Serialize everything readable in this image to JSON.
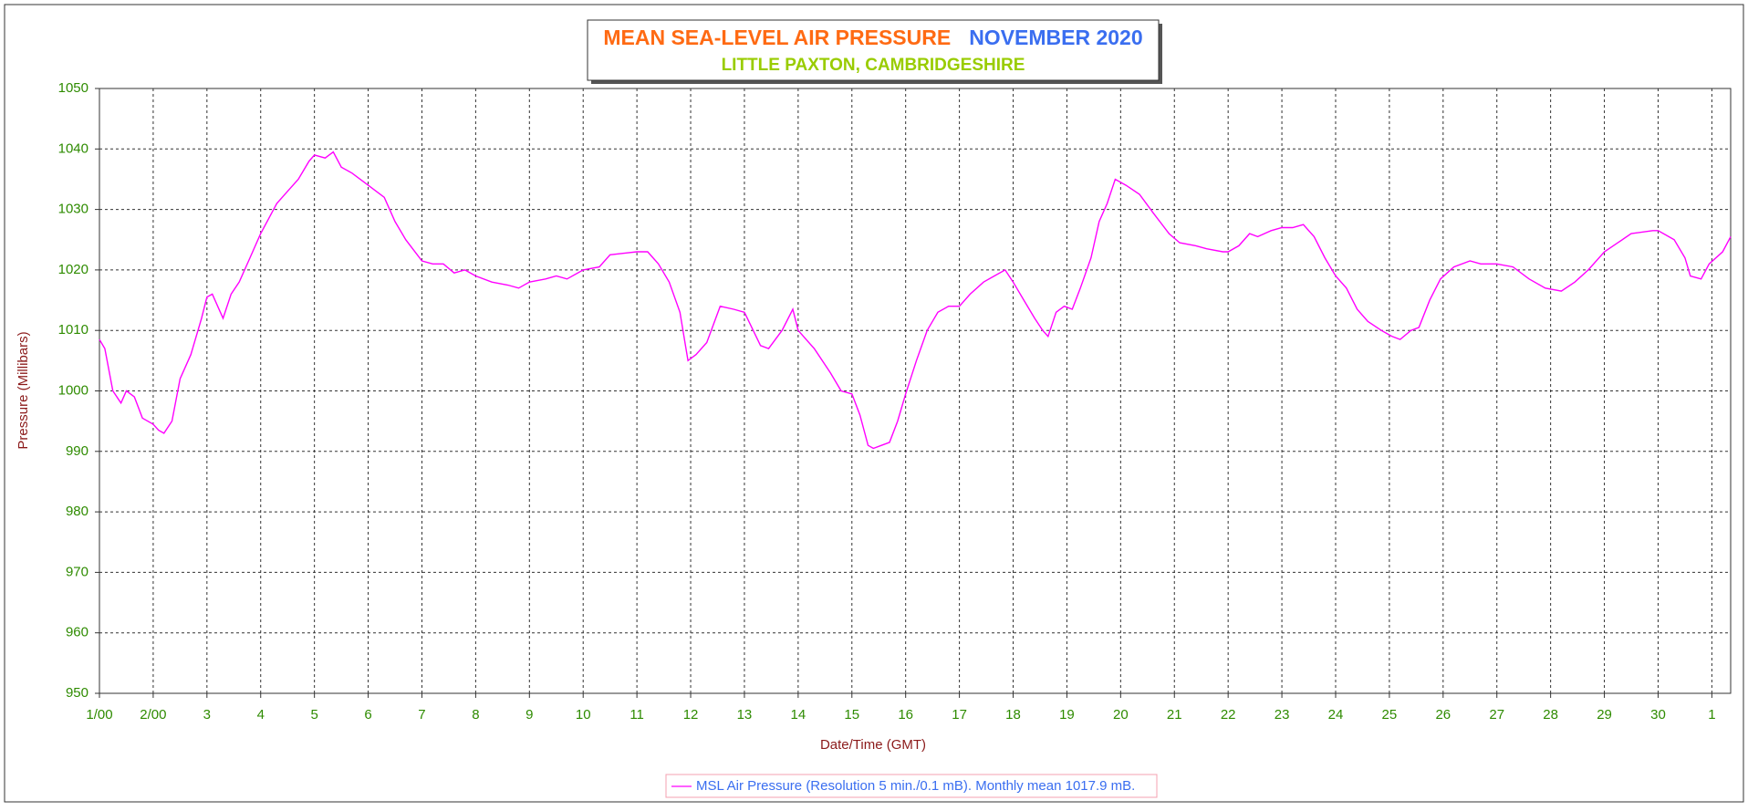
{
  "chart_data": {
    "type": "line",
    "title": "MEAN SEA-LEVEL AIR PRESSURE",
    "title_date": "NOVEMBER 2020",
    "subtitle": "LITTLE PAXTON, CAMBRIDGESHIRE",
    "xlabel": "Date/Time (GMT)",
    "ylabel": "Pressure (Millibars)",
    "grid": true,
    "xlim": [
      0,
      30.35
    ],
    "ylim": [
      950,
      1050
    ],
    "yticks": [
      950,
      960,
      970,
      980,
      990,
      1000,
      1010,
      1020,
      1030,
      1040,
      1050
    ],
    "xticks": [
      {
        "value": 0,
        "label": "1/00"
      },
      {
        "value": 1,
        "label": "2/00"
      },
      {
        "value": 2,
        "label": "3"
      },
      {
        "value": 3,
        "label": "4"
      },
      {
        "value": 4,
        "label": "5"
      },
      {
        "value": 5,
        "label": "6"
      },
      {
        "value": 6,
        "label": "7"
      },
      {
        "value": 7,
        "label": "8"
      },
      {
        "value": 8,
        "label": "9"
      },
      {
        "value": 9,
        "label": "10"
      },
      {
        "value": 10,
        "label": "11"
      },
      {
        "value": 11,
        "label": "12"
      },
      {
        "value": 12,
        "label": "13"
      },
      {
        "value": 13,
        "label": "14"
      },
      {
        "value": 14,
        "label": "15"
      },
      {
        "value": 15,
        "label": "16"
      },
      {
        "value": 16,
        "label": "17"
      },
      {
        "value": 17,
        "label": "18"
      },
      {
        "value": 18,
        "label": "19"
      },
      {
        "value": 19,
        "label": "20"
      },
      {
        "value": 20,
        "label": "21"
      },
      {
        "value": 21,
        "label": "22"
      },
      {
        "value": 22,
        "label": "23"
      },
      {
        "value": 23,
        "label": "24"
      },
      {
        "value": 24,
        "label": "25"
      },
      {
        "value": 25,
        "label": "26"
      },
      {
        "value": 26,
        "label": "27"
      },
      {
        "value": 27,
        "label": "28"
      },
      {
        "value": 28,
        "label": "29"
      },
      {
        "value": 29,
        "label": "30"
      },
      {
        "value": 30,
        "label": "1"
      }
    ],
    "x": [
      0,
      0.1,
      0.25,
      0.4,
      0.5,
      0.65,
      0.8,
      1.0,
      1.1,
      1.2,
      1.35,
      1.5,
      1.7,
      1.9,
      2.0,
      2.1,
      2.2,
      2.3,
      2.45,
      2.6,
      2.8,
      3.0,
      3.3,
      3.5,
      3.7,
      3.9,
      4.0,
      4.2,
      4.35,
      4.5,
      4.7,
      5.0,
      5.3,
      5.5,
      5.7,
      6.0,
      6.2,
      6.4,
      6.6,
      6.8,
      7.0,
      7.3,
      7.6,
      7.8,
      8.0,
      8.3,
      8.5,
      8.7,
      9.0,
      9.3,
      9.5,
      9.8,
      10.0,
      10.2,
      10.4,
      10.6,
      10.8,
      10.95,
      11.1,
      11.3,
      11.55,
      11.8,
      12.0,
      12.3,
      12.45,
      12.7,
      12.9,
      13.0,
      13.3,
      13.6,
      13.8,
      14.0,
      14.15,
      14.3,
      14.4,
      14.55,
      14.7,
      14.85,
      15.0,
      15.2,
      15.4,
      15.6,
      15.8,
      16.0,
      16.2,
      16.45,
      16.65,
      16.85,
      17.0,
      17.2,
      17.4,
      17.55,
      17.65,
      17.8,
      17.95,
      18.1,
      18.25,
      18.45,
      18.6,
      18.75,
      18.9,
      19.1,
      19.35,
      19.6,
      19.9,
      20.1,
      20.4,
      20.6,
      20.9,
      21.0,
      21.2,
      21.4,
      21.55,
      21.8,
      22.0,
      22.2,
      22.4,
      22.6,
      22.8,
      23.0,
      23.2,
      23.4,
      23.6,
      23.85,
      24.05,
      24.2,
      24.4,
      24.55,
      24.75,
      24.95,
      25.2,
      25.5,
      25.7,
      26.0,
      26.3,
      26.6,
      26.9,
      27.2,
      27.45,
      27.7,
      28.0,
      28.25,
      28.5,
      28.9,
      29.0,
      29.3,
      29.5,
      29.6,
      29.8,
      29.95,
      30.2,
      30.35
    ],
    "series": [
      {
        "name": "MSL Air Pressure (Resolution 5 min./0.1 mB). Monthly mean 1017.9 mB.",
        "color": "#ff00ff",
        "values": [
          1008.5,
          1007,
          1000,
          998,
          1000,
          999,
          995.5,
          994.5,
          993.5,
          993,
          995,
          1002,
          1006,
          1012,
          1015.5,
          1016,
          1014,
          1012,
          1016,
          1018,
          1022,
          1026,
          1031,
          1033,
          1035,
          1038,
          1039,
          1038.5,
          1039.5,
          1037,
          1036,
          1034,
          1032,
          1028,
          1025,
          1021.5,
          1021,
          1021,
          1019.5,
          1020,
          1019,
          1018,
          1017.5,
          1017,
          1018,
          1018.5,
          1019,
          1018.5,
          1020,
          1020.5,
          1022.5,
          1022.8,
          1023,
          1023,
          1021,
          1018,
          1013,
          1005,
          1006,
          1008,
          1014,
          1013.5,
          1013,
          1007.5,
          1007,
          1010,
          1013.5,
          1010,
          1007,
          1003,
          1000,
          999.5,
          996,
          991,
          990.5,
          991,
          991.5,
          995,
          999.5,
          1005,
          1010,
          1013,
          1014,
          1014,
          1016,
          1018,
          1019,
          1020,
          1018,
          1015,
          1012,
          1010,
          1009,
          1013,
          1014,
          1013.5,
          1017,
          1022,
          1028,
          1031,
          1035,
          1034,
          1032.5,
          1029.5,
          1026,
          1024.5,
          1024,
          1023.5,
          1023,
          1023,
          1024,
          1026,
          1025.5,
          1026.5,
          1027,
          1027,
          1027.5,
          1025.5,
          1022,
          1019,
          1017,
          1013.5,
          1011.5,
          1010,
          1009,
          1008.5,
          1010,
          1010.5,
          1015,
          1018.5,
          1020.5,
          1021.5,
          1021,
          1021,
          1020.5,
          1018.5,
          1017,
          1016.5,
          1018,
          1020,
          1023,
          1024.5,
          1026,
          1026.5,
          1026.5,
          1025,
          1022,
          1019,
          1018.5,
          1021,
          1023,
          1025.5
        ]
      }
    ]
  }
}
